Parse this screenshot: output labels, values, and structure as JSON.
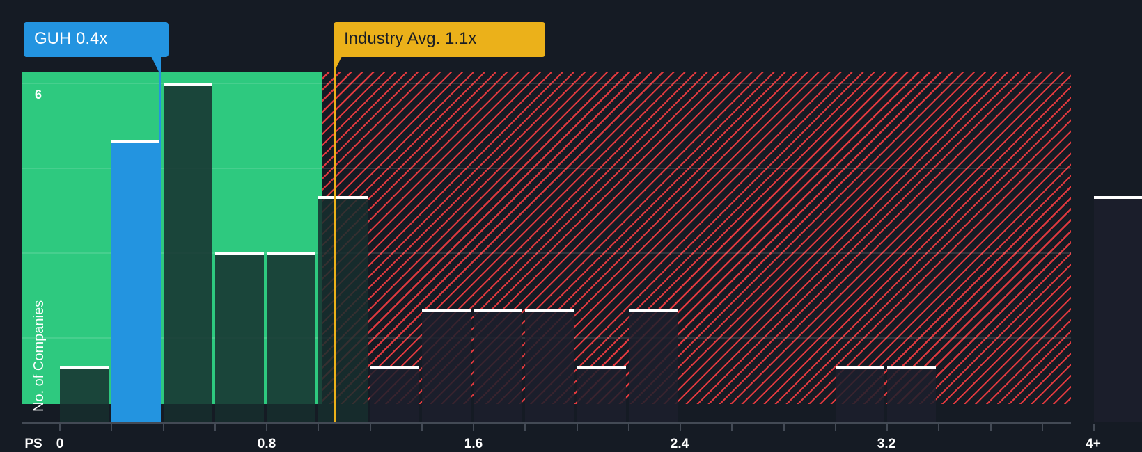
{
  "chart_data": {
    "type": "bar",
    "title": "",
    "xlabel": "PS",
    "ylabel": "No. of Companies",
    "x_tick_labels": [
      "0",
      "0.8",
      "1.6",
      "2.4",
      "3.2",
      "4+"
    ],
    "y_tick_labels": [
      "6"
    ],
    "ylim": [
      0,
      6
    ],
    "grid": true,
    "bin_width": 0.2,
    "categories": [
      "0-0.2",
      "0.2-0.4",
      "0.4-0.6",
      "0.6-0.8",
      "0.8-1.0",
      "1.0-1.2",
      "1.2-1.4",
      "1.4-1.6",
      "1.6-1.8",
      "1.8-2.0",
      "2.0-2.2",
      "2.2-2.4",
      "2.4-2.6",
      "2.6-2.8",
      "2.8-3.0",
      "3.0-3.2",
      "3.2-3.4",
      "3.4-3.6",
      "3.6-3.8",
      "3.8-4.0",
      "4+"
    ],
    "values": [
      1,
      5,
      6,
      3,
      3,
      4,
      1,
      2,
      2,
      2,
      1,
      2,
      0,
      0,
      0,
      1,
      1,
      0,
      0,
      0,
      4
    ],
    "highlighted_bin": "0.2-0.4",
    "annotations": {
      "company": {
        "label": "GUH 0.4x",
        "value": 0.4,
        "color": "#2394e0"
      },
      "industry": {
        "label": "Industry Avg. 1.1x",
        "value": 1.1,
        "color": "#ebb11a"
      }
    },
    "zones": {
      "undervalued": {
        "from": 0,
        "to": 1.01,
        "color": "#2ec97f"
      },
      "overvalued": {
        "from": 1.01,
        "to": "4+",
        "color": "#e0393e"
      }
    }
  },
  "labels": {
    "company_callout": "GUH 0.4x",
    "industry_callout": "Industry Avg. 1.1x",
    "x_axis_title": "PS",
    "y_axis_title": "No. of Companies",
    "y_tick_top": "6",
    "x_ticks": [
      "0",
      "0.8",
      "1.6",
      "2.4",
      "3.2",
      "4+"
    ]
  }
}
